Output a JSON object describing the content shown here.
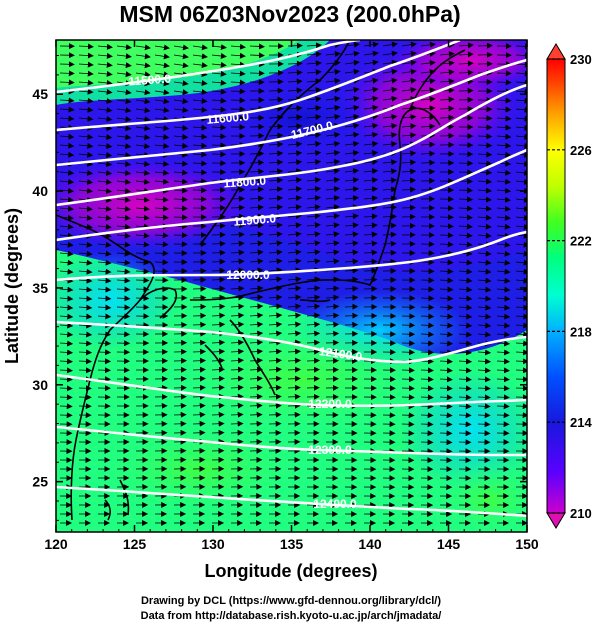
{
  "title": "MSM 06Z03Nov2023 (200.0hPa)",
  "map": {
    "xlabel": "Longitude (degrees)",
    "ylabel": "Latitude  (degrees)",
    "lon_range": [
      120,
      150
    ],
    "lat_range": [
      22.4,
      47.8
    ],
    "x_ticks": [
      "120",
      "125",
      "130",
      "135",
      "140",
      "145",
      "150"
    ],
    "x_tick_values": [
      120,
      125,
      130,
      135,
      140,
      145,
      150
    ],
    "y_ticks": [
      "25",
      "30",
      "35",
      "40",
      "45"
    ],
    "y_tick_values": [
      25,
      30,
      35,
      40,
      45
    ]
  },
  "contours": [
    {
      "label": "11500.0",
      "value": 11500
    },
    {
      "label": "11600.0",
      "value": 11600
    },
    {
      "label": "11700.0",
      "value": 11700
    },
    {
      "label": "11800.0",
      "value": 11800
    },
    {
      "label": "11900.0",
      "value": 11900
    },
    {
      "label": "12000.0",
      "value": 12000
    },
    {
      "label": "12100.0",
      "value": 12100
    },
    {
      "label": "12200.0",
      "value": 12200
    },
    {
      "label": "12300.0",
      "value": 12300
    },
    {
      "label": "12400.0",
      "value": 12400
    }
  ],
  "colorbar": {
    "min": 210,
    "max": 230,
    "ticks": [
      "230",
      "226",
      "222",
      "218",
      "214",
      "210"
    ],
    "tick_values": [
      230,
      226,
      222,
      218,
      214,
      210
    ],
    "colors": [
      "#cc00cc",
      "#5a00ff",
      "#1818dd",
      "#0050ff",
      "#00b0ff",
      "#00ffd0",
      "#00ff80",
      "#40ff20",
      "#c0ff00",
      "#ffff00",
      "#ffa000",
      "#ff4000",
      "#ff0000"
    ]
  },
  "credits": {
    "line1": "Drawing by DCL (https://www.gfd-dennou.org/library/dcl/)",
    "line2": "Data from http://database.rish.kyoto-u.ac.jp/arch/jmadata/"
  }
}
